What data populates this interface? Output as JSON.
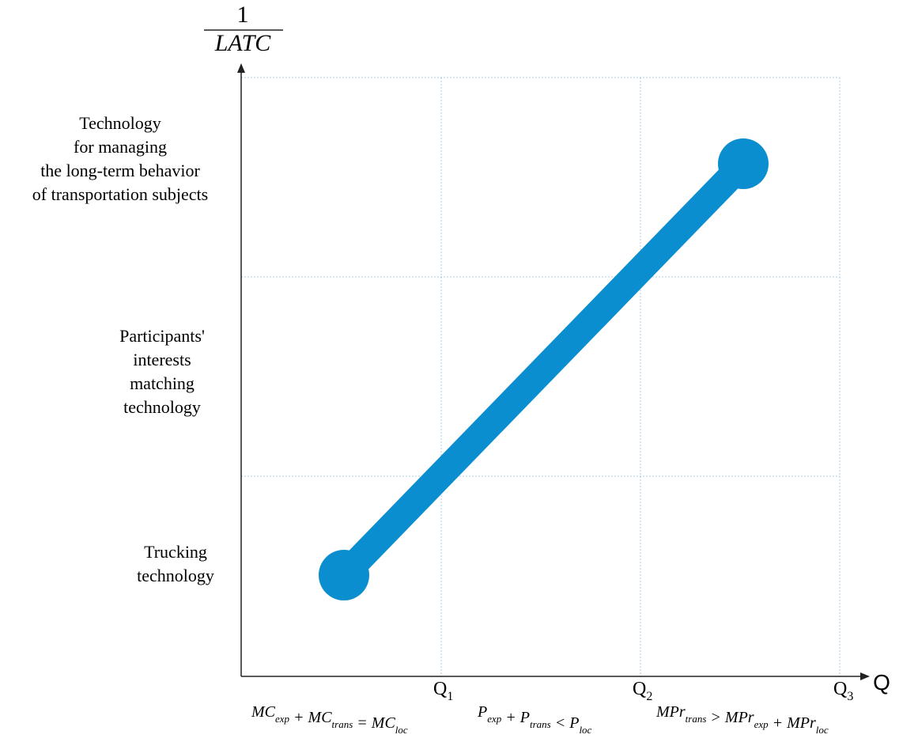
{
  "y_axis": {
    "numerator": "1",
    "denominator": "LATC"
  },
  "x_axis": {
    "label": "Q"
  },
  "x_ticks": [
    {
      "t": "Q",
      "sub": "1"
    },
    {
      "t": "Q",
      "sub": "2"
    },
    {
      "t": "Q",
      "sub": "3"
    }
  ],
  "levels": [
    [
      "Technology",
      "for managing",
      "the long-term behavior",
      "of transportation subjects"
    ],
    [
      "Participants'",
      "interests",
      "matching",
      "technology"
    ],
    [
      "Trucking",
      "technology"
    ]
  ],
  "conditions": [
    [
      {
        "t": "MC",
        "sub": "exp"
      },
      {
        "t": " + MC",
        "sub": "trans"
      },
      {
        "t": " = MC",
        "sub": "loc"
      }
    ],
    [
      {
        "t": "P",
        "sub": "exp"
      },
      {
        "t": " + P",
        "sub": "trans"
      },
      {
        "t": " < P",
        "sub": "loc"
      }
    ],
    [
      {
        "t": "MPr",
        "sub": "trans"
      },
      {
        "t": " > MPr",
        "sub": "exp"
      },
      {
        "t": " + MPr",
        "sub": "loc"
      }
    ]
  ]
}
